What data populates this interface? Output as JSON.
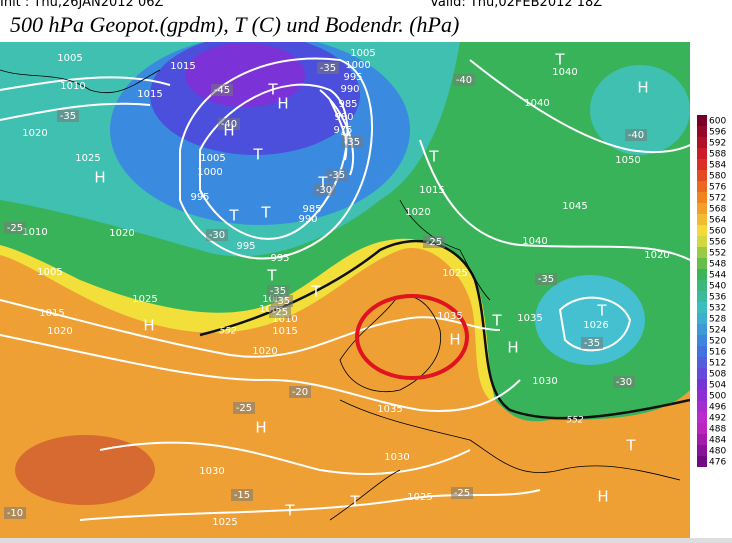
{
  "header": {
    "init": "Init : Thu,26JAN2012 06Z",
    "valid": "Valid: Thu,02FEB2012 18Z",
    "title": "500 hPa Geopot.(gpdm), T (C) und Bodendr. (hPa)"
  },
  "legend": {
    "labels": [
      600,
      596,
      592,
      588,
      584,
      580,
      576,
      572,
      568,
      564,
      560,
      556,
      552,
      548,
      544,
      540,
      536,
      532,
      528,
      524,
      520,
      516,
      512,
      508,
      504,
      500,
      496,
      492,
      488,
      484,
      480,
      476
    ]
  },
  "map": {
    "pressure_labels": [
      1005,
      1015,
      1010,
      1015,
      1005,
      1000,
      995,
      990,
      985,
      980,
      975,
      1020,
      1025,
      1005,
      1000,
      995,
      985,
      990,
      1015,
      1020,
      1010,
      1020,
      995,
      995,
      1005,
      1025,
      1015,
      1020,
      1000,
      1005,
      1010,
      1015,
      1020,
      1025,
      1035,
      1035,
      1026,
      1030,
      1035,
      1030,
      1030,
      1025,
      1025,
      1040,
      1045,
      1050,
      1040,
      1020,
      1040
    ],
    "temperature_labels": [
      -45,
      -40,
      -35,
      -35,
      -35,
      -30,
      -35,
      -25,
      -30,
      -35,
      -35,
      -25,
      -25,
      -35,
      -40,
      -40,
      -35,
      -30,
      -20,
      -25,
      -15,
      -10,
      -25
    ],
    "symbols": [
      "H",
      "H",
      "H",
      "T",
      "T",
      "T",
      "T",
      "T",
      "T",
      "T",
      "H",
      "H",
      "H",
      "H",
      "T",
      "T",
      "T",
      "T",
      "H",
      "T",
      "H",
      "T",
      "T",
      "T"
    ],
    "contour_labels": [
      552,
      552
    ]
  }
}
